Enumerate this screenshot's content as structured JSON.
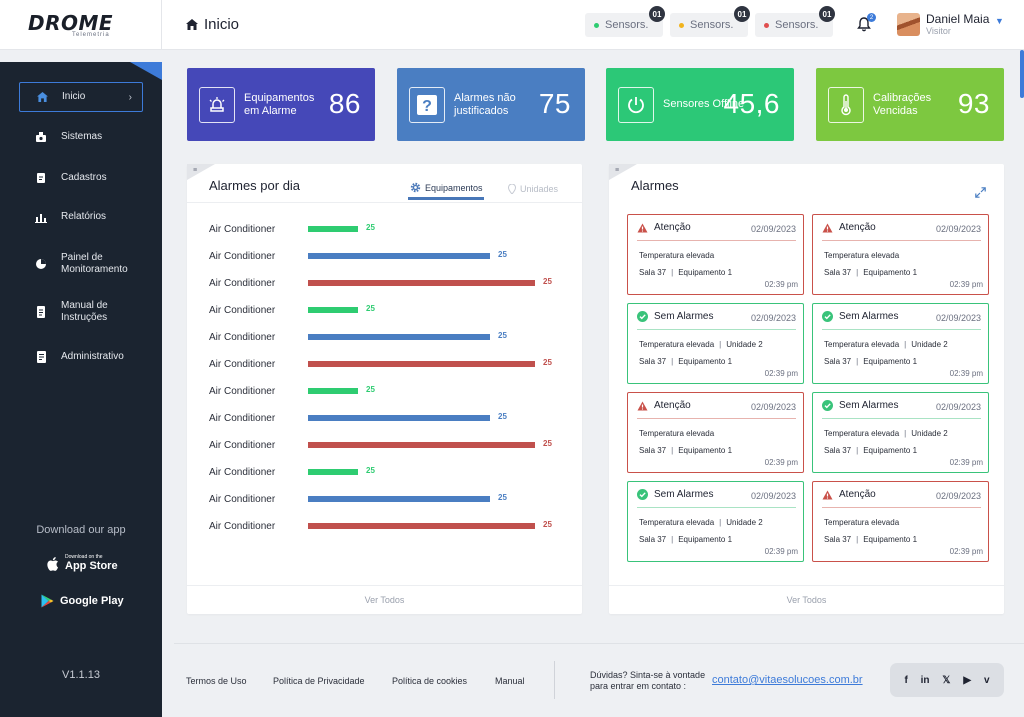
{
  "brand": {
    "logo": "DROME",
    "sub": "Telemetria"
  },
  "header": {
    "title": "Inicio",
    "sensors": [
      {
        "label": "Sensors.",
        "count": "01",
        "color": "#2ecc71"
      },
      {
        "label": "Sensors.",
        "count": "01",
        "color": "#f1b31c"
      },
      {
        "label": "Sensors.",
        "count": "01",
        "color": "#e04f4f"
      }
    ],
    "notifications": "2",
    "user": {
      "name": "Daniel Maia",
      "role": "Visitor"
    }
  },
  "sidebar": {
    "items": [
      {
        "label": "Inicio",
        "icon": "home-icon"
      },
      {
        "label": "Sistemas",
        "icon": "systems-icon"
      },
      {
        "label": "Cadastros",
        "icon": "register-icon"
      },
      {
        "label": "Relatórios",
        "icon": "reports-icon"
      },
      {
        "label": "Painel de Monitoramento",
        "icon": "pie-chart-icon"
      },
      {
        "label": "Manual de Instruções",
        "icon": "manual-icon"
      },
      {
        "label": "Administrativo",
        "icon": "admin-icon"
      }
    ],
    "download_label": "Download our app",
    "appstore_small": "Download on the",
    "appstore_big": "App Store",
    "googleplay": "Google Play",
    "version": "V1.1.13"
  },
  "kpis": [
    {
      "label": "Equipamentos em Alarme",
      "value": "86",
      "color": "#4548b8",
      "icon": "siren-icon"
    },
    {
      "label": "Alarmes não justificados",
      "value": "75",
      "color": "#4a7ec2",
      "icon": "question-icon"
    },
    {
      "label": "Sensores Offline",
      "value": "45,6",
      "color": "#2cc877",
      "icon": "power-icon"
    },
    {
      "label": "Calibrações Vencidas",
      "value": "93",
      "color": "#7dc840",
      "icon": "thermometer-icon"
    }
  ],
  "alarms_per_day": {
    "title": "Alarmes por dia",
    "tabs": [
      "Equipamentos",
      "Unidades"
    ],
    "footer": "Ver Todos"
  },
  "chart_data": {
    "type": "bar",
    "title": "Alarmes por dia",
    "categories": [
      "Air Conditioner",
      "Air Conditioner",
      "Air Conditioner",
      "Air Conditioner",
      "Air Conditioner",
      "Air Conditioner",
      "Air Conditioner",
      "Air Conditioner",
      "Air Conditioner",
      "Air Conditioner",
      "Air Conditioner",
      "Air Conditioner"
    ],
    "values": [
      25,
      25,
      25,
      25,
      25,
      25,
      25,
      25,
      25,
      25,
      25,
      25
    ],
    "level": [
      0.22,
      0.8,
      1.0,
      0.22,
      0.8,
      1.0,
      0.22,
      0.8,
      1.0,
      0.22,
      0.8,
      1.0
    ],
    "colors": [
      "#2ecc71",
      "#4a7ec2",
      "#c0504d",
      "#2ecc71",
      "#4a7ec2",
      "#c0504d",
      "#2ecc71",
      "#4a7ec2",
      "#c0504d",
      "#2ecc71",
      "#4a7ec2",
      "#c0504d"
    ]
  },
  "alarms": {
    "title": "Alarmes",
    "footer": "Ver Todos",
    "cards": [
      {
        "status": "warn",
        "title": "Atenção",
        "date": "02/09/2023",
        "line1": "Temperatura elevada",
        "unit": "",
        "room": "Sala 37",
        "equip": "Equipamento 1",
        "time": "02:39 pm"
      },
      {
        "status": "warn",
        "title": "Atenção",
        "date": "02/09/2023",
        "line1": "Temperatura elevada",
        "unit": "",
        "room": "Sala 37",
        "equip": "Equipamento 1",
        "time": "02:39 pm"
      },
      {
        "status": "ok",
        "title": "Sem Alarmes",
        "date": "02/09/2023",
        "line1": "Temperatura elevada",
        "unit": "Unidade 2",
        "room": "Sala 37",
        "equip": "Equipamento 1",
        "time": "02:39 pm"
      },
      {
        "status": "ok",
        "title": "Sem Alarmes",
        "date": "02/09/2023",
        "line1": "Temperatura elevada",
        "unit": "Unidade 2",
        "room": "Sala 37",
        "equip": "Equipamento 1",
        "time": "02:39 pm"
      },
      {
        "status": "warn",
        "title": "Atenção",
        "date": "02/09/2023",
        "line1": "Temperatura elevada",
        "unit": "",
        "room": "Sala 37",
        "equip": "Equipamento 1",
        "time": "02:39 pm"
      },
      {
        "status": "ok",
        "title": "Sem Alarmes",
        "date": "02/09/2023",
        "line1": "Temperatura elevada",
        "unit": "Unidade 2",
        "room": "Sala 37",
        "equip": "Equipamento 1",
        "time": "02:39 pm"
      },
      {
        "status": "ok",
        "title": "Sem Alarmes",
        "date": "02/09/2023",
        "line1": "Temperatura elevada",
        "unit": "Unidade 2",
        "room": "Sala 37",
        "equip": "Equipamento 1",
        "time": "02:39 pm"
      },
      {
        "status": "warn",
        "title": "Atenção",
        "date": "02/09/2023",
        "line1": "Temperatura elevada",
        "unit": "",
        "room": "Sala 37",
        "equip": "Equipamento 1",
        "time": "02:39 pm"
      }
    ]
  },
  "footer": {
    "links": [
      "Termos de Uso",
      "Política de Privacidade",
      "Política de cookies",
      "Manual"
    ],
    "contact_line1": "Dúvidas? Sinta-se à vontade",
    "contact_line2": "para entrar em contato :",
    "email": "contato@vitaesolucoes.com.br",
    "social": [
      "f",
      "in",
      "𝕏",
      "▶",
      "v"
    ]
  }
}
